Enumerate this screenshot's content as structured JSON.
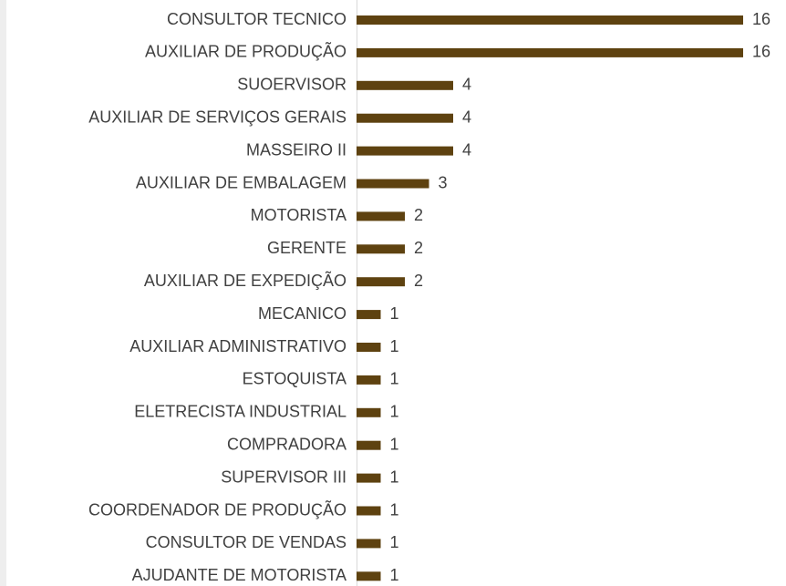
{
  "chart_data": {
    "type": "barh",
    "categories": [
      "CONSULTOR TECNICO",
      "AUXILIAR DE PRODUÇÃO",
      "SUOERVISOR",
      "AUXILIAR DE SERVIÇOS GERAIS",
      "MASSEIRO II",
      "AUXILIAR DE EMBALAGEM",
      "MOTORISTA",
      "GERENTE",
      "AUXILIAR DE EXPEDIÇÃO",
      "MECANICO",
      "AUXILIAR ADMINISTRATIVO",
      "ESTOQUISTA",
      "ELETRECISTA INDUSTRIAL",
      "COMPRADORA",
      "SUPERVISOR III",
      "COORDENADOR DE PRODUÇÃO",
      "CONSULTOR DE VENDAS",
      "AJUDANTE DE MOTORISTA"
    ],
    "values": [
      16,
      16,
      4,
      4,
      4,
      3,
      2,
      2,
      2,
      1,
      1,
      1,
      1,
      1,
      1,
      1,
      1,
      1
    ],
    "color": "#5e4210",
    "xlim": [
      0,
      16
    ]
  }
}
